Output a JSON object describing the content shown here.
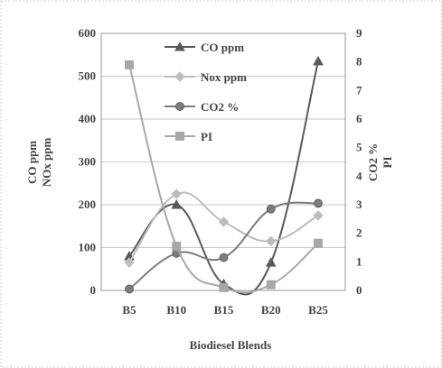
{
  "chart_data": {
    "type": "line",
    "title": "",
    "categories": [
      "B5",
      "B10",
      "B15",
      "B20",
      "B25"
    ],
    "xlabel": "Biodiesel Blends",
    "ylabel_left": [
      "CO ppm",
      "NOx ppm"
    ],
    "ylabel_right": [
      "CO2 %",
      "PI"
    ],
    "ylim_left": [
      0,
      600
    ],
    "yticks_left": [
      "0",
      "100",
      "200",
      "300",
      "400",
      "500",
      "600"
    ],
    "ylim_right": [
      0,
      9
    ],
    "yticks_right": [
      "0",
      "1",
      "2",
      "3",
      "4",
      "5",
      "6",
      "7",
      "8",
      "9"
    ],
    "grid": true,
    "legend_position": "top-center",
    "series": [
      {
        "name": "CO ppm",
        "axis": "left",
        "marker": "triangle",
        "color": "#5a5a5a",
        "values": [
          80,
          200,
          15,
          65,
          535
        ]
      },
      {
        "name": "Nox ppm",
        "axis": "left",
        "marker": "diamond",
        "color": "#bdbdbd",
        "values": [
          65,
          225,
          160,
          115,
          175
        ]
      },
      {
        "name": "CO2 %",
        "axis": "right",
        "marker": "circle",
        "color": "#7c7c7c",
        "values": [
          0.05,
          1.3,
          1.15,
          2.85,
          3.05
        ]
      },
      {
        "name": "PI",
        "axis": "right",
        "marker": "square",
        "color": "#a8a8a8",
        "values": [
          7.9,
          1.55,
          0.1,
          0.2,
          1.65
        ]
      }
    ]
  }
}
